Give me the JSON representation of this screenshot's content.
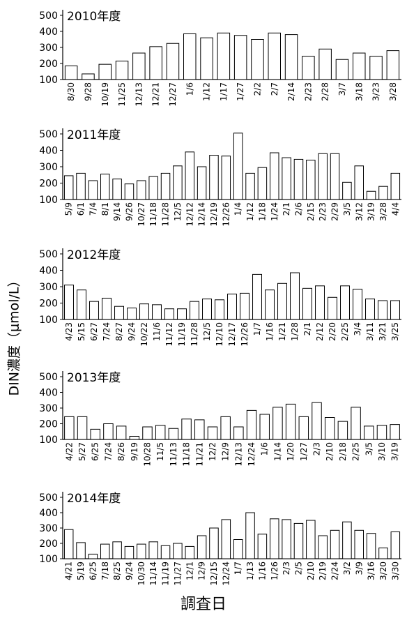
{
  "ylabel": "DIN濃度（μmol/L）",
  "xlabel": "調査日",
  "chart_data": [
    {
      "type": "bar",
      "title": "2010年度",
      "ylim": [
        100,
        500
      ],
      "yticks": [
        100,
        200,
        300,
        400,
        500
      ],
      "categories": [
        "8/30",
        "9/28",
        "10/19",
        "11/25",
        "12/13",
        "12/21",
        "12/27",
        "1/6",
        "1/12",
        "1/17",
        "1/27",
        "2/2",
        "2/7",
        "2/14",
        "2/23",
        "2/28",
        "3/7",
        "3/18",
        "3/23",
        "3/28"
      ],
      "values": [
        185,
        135,
        195,
        215,
        265,
        305,
        325,
        385,
        360,
        390,
        375,
        350,
        390,
        380,
        245,
        290,
        225,
        265,
        245,
        280
      ]
    },
    {
      "type": "bar",
      "title": "2011年度",
      "ylim": [
        100,
        500
      ],
      "yticks": [
        100,
        200,
        300,
        400,
        500
      ],
      "categories": [
        "5/9",
        "6/1",
        "7/4",
        "8/1",
        "9/14",
        "9/26",
        "10/27",
        "11/18",
        "11/28",
        "12/5",
        "12/12",
        "12/14",
        "12/19",
        "12/26",
        "1/4",
        "1/12",
        "1/18",
        "1/24",
        "2/1",
        "2/6",
        "2/15",
        "2/23",
        "2/29",
        "3/5",
        "3/12",
        "3/19",
        "3/28",
        "4/4"
      ],
      "values": [
        245,
        260,
        215,
        255,
        225,
        195,
        215,
        240,
        260,
        305,
        390,
        300,
        370,
        365,
        505,
        260,
        295,
        385,
        355,
        345,
        340,
        380,
        380,
        205,
        305,
        150,
        180,
        260
      ]
    },
    {
      "type": "bar",
      "title": "2012年度",
      "ylim": [
        100,
        500
      ],
      "yticks": [
        100,
        200,
        300,
        400,
        500
      ],
      "categories": [
        "4/23",
        "5/15",
        "6/27",
        "7/24",
        "8/27",
        "9/24",
        "10/22",
        "11/6",
        "11/12",
        "11/19",
        "11/28",
        "12/5",
        "12/10",
        "12/17",
        "12/26",
        "1/7",
        "1/16",
        "1/21",
        "1/28",
        "2/1",
        "2/12",
        "2/20",
        "2/25",
        "3/4",
        "3/11",
        "3/21",
        "3/25"
      ],
      "values": [
        310,
        280,
        210,
        230,
        180,
        170,
        195,
        190,
        165,
        165,
        210,
        225,
        220,
        255,
        260,
        375,
        280,
        320,
        385,
        290,
        305,
        235,
        305,
        285,
        225,
        215,
        215
      ]
    },
    {
      "type": "bar",
      "title": "2013年度",
      "ylim": [
        100,
        500
      ],
      "yticks": [
        100,
        200,
        300,
        400,
        500
      ],
      "categories": [
        "4/22",
        "5/27",
        "6/25",
        "7/24",
        "8/26",
        "9/19",
        "10/28",
        "11/5",
        "11/13",
        "11/18",
        "11/21",
        "12/2",
        "12/9",
        "12/13",
        "12/24",
        "1/6",
        "1/14",
        "1/20",
        "1/27",
        "2/3",
        "2/10",
        "2/18",
        "2/25",
        "3/5",
        "3/10",
        "3/19"
      ],
      "values": [
        245,
        245,
        165,
        200,
        185,
        120,
        180,
        190,
        170,
        230,
        225,
        180,
        245,
        180,
        285,
        260,
        305,
        325,
        245,
        335,
        240,
        215,
        305,
        185,
        190,
        195
      ]
    },
    {
      "type": "bar",
      "title": "2014年度",
      "ylim": [
        100,
        500
      ],
      "yticks": [
        100,
        200,
        300,
        400,
        500
      ],
      "categories": [
        "4/21",
        "5/19",
        "6/25",
        "7/18",
        "8/25",
        "9/24",
        "10/30",
        "11/14",
        "11/19",
        "11/27",
        "12/1",
        "12/9",
        "12/15",
        "12/24",
        "1/7",
        "1/13",
        "1/16",
        "1/26",
        "2/3",
        "2/5",
        "2/10",
        "2/19",
        "2/24",
        "3/2",
        "3/9",
        "3/16",
        "3/20",
        "3/30"
      ],
      "values": [
        290,
        205,
        130,
        195,
        210,
        180,
        195,
        210,
        185,
        200,
        180,
        250,
        300,
        355,
        225,
        400,
        260,
        360,
        355,
        330,
        350,
        250,
        285,
        340,
        285,
        265,
        170,
        275
      ]
    }
  ]
}
